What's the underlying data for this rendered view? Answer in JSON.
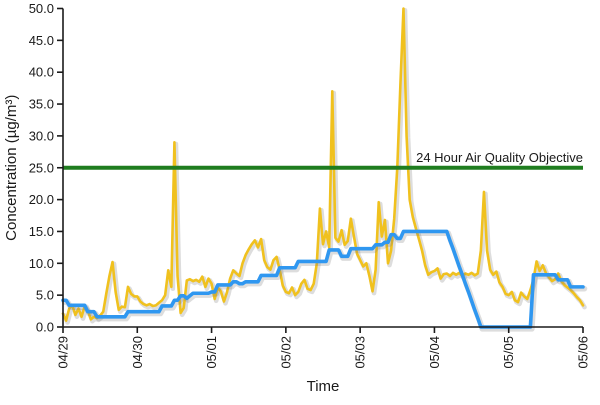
{
  "chart_data": {
    "type": "line",
    "title": "",
    "xlabel": "Time",
    "ylabel": "Concentration (µg/m³)",
    "x_unit": "hours from 04/29 00:00",
    "x_range_hours": [
      0,
      168
    ],
    "ylim": [
      0,
      50
    ],
    "ytick_step": 5,
    "ytick_labels": [
      "0.0",
      "5.0",
      "10.0",
      "15.0",
      "20.0",
      "25.0",
      "30.0",
      "35.0",
      "40.0",
      "45.0",
      "50.0"
    ],
    "x_tick_hours": [
      0,
      24,
      48,
      72,
      96,
      120,
      144,
      168
    ],
    "x_tick_labels": [
      "04/29",
      "04/30",
      "05/01",
      "05/02",
      "05/03",
      "05/04",
      "05/05",
      "05/06"
    ],
    "grid": "off",
    "legend": "none",
    "axis_color": "#1a1a1a",
    "reference_line": {
      "value": 25,
      "label": "24 Hour Air Quality Objective",
      "color": "#1f7d1f"
    },
    "series": [
      {
        "name": "hourly-concentration-yellow",
        "color": "#f0c11e",
        "width": 2.6,
        "values": [
          2.1,
          1.0,
          2.9,
          3.4,
          1.9,
          2.9,
          1.6,
          3.3,
          2.6,
          1.2,
          1.6,
          1.4,
          1.8,
          2.4,
          5.3,
          8.0,
          10.2,
          5.5,
          2.7,
          3.2,
          3.1,
          6.3,
          5.2,
          4.8,
          4.8,
          4.0,
          3.6,
          3.4,
          3.6,
          3.3,
          3.4,
          3.8,
          4.2,
          5.0,
          8.9,
          6.3,
          29.0,
          8.0,
          2.2,
          3.0,
          7.3,
          7.5,
          7.2,
          7.4,
          7.1,
          7.9,
          6.3,
          7.6,
          6.8,
          4.4,
          6.2,
          5.6,
          4.0,
          5.5,
          7.6,
          8.9,
          8.4,
          8.0,
          10.0,
          11.3,
          12.2,
          13.0,
          13.6,
          12.5,
          13.8,
          10.5,
          9.4,
          9.0,
          10.5,
          11.0,
          9.0,
          6.5,
          5.5,
          5.3,
          6.2,
          5.0,
          5.5,
          6.8,
          7.4,
          6.0,
          5.8,
          6.8,
          10.0,
          18.6,
          13.0,
          15.0,
          12.5,
          37.0,
          14.0,
          13.4,
          15.2,
          12.9,
          13.5,
          17.0,
          14.2,
          11.5,
          10.5,
          9.5,
          10.0,
          8.0,
          5.6,
          9.0,
          19.6,
          14.2,
          16.8,
          10.0,
          12.0,
          17.0,
          25.0,
          38.0,
          50.0,
          30.0,
          20.0,
          17.3,
          15.5,
          13.8,
          12.0,
          9.7,
          8.2,
          8.6,
          8.8,
          9.2,
          7.6,
          8.3,
          8.4,
          8.0,
          8.5,
          8.2,
          8.5,
          8.0,
          8.4,
          8.2,
          8.5,
          8.1,
          8.4,
          12.0,
          21.2,
          12.0,
          9.0,
          8.2,
          8.7,
          7.0,
          6.3,
          5.2,
          5.0,
          5.5,
          4.2,
          3.9,
          5.4,
          4.8,
          4.4,
          5.8,
          7.5,
          10.3,
          8.8,
          9.7,
          8.5,
          7.8,
          7.2,
          7.5,
          8.4,
          7.2,
          6.6,
          6.2,
          5.8,
          5.3,
          4.7,
          4.2,
          3.4
        ]
      },
      {
        "name": "24-hour-average-concentration-blue",
        "color": "#2f97f0",
        "width": 3.6,
        "values": [
          4.2,
          4.2,
          3.4,
          3.4,
          3.4,
          3.4,
          3.4,
          3.4,
          2.4,
          2.4,
          2.4,
          1.6,
          1.6,
          1.6,
          1.6,
          1.6,
          1.6,
          1.6,
          1.6,
          1.6,
          1.6,
          2.4,
          2.4,
          2.4,
          2.4,
          2.4,
          2.4,
          2.4,
          2.4,
          2.4,
          2.4,
          2.4,
          3.3,
          3.3,
          3.3,
          3.3,
          4.2,
          4.2,
          4.9,
          4.9,
          4.5,
          4.9,
          5.3,
          5.3,
          5.3,
          5.3,
          5.3,
          5.3,
          5.5,
          5.5,
          6.6,
          6.6,
          6.6,
          6.6,
          6.6,
          7.1,
          7.1,
          6.8,
          6.8,
          7.1,
          7.1,
          7.1,
          7.1,
          7.1,
          8.1,
          8.1,
          8.1,
          8.1,
          8.1,
          8.1,
          9.3,
          9.3,
          9.3,
          9.3,
          9.3,
          9.3,
          10.3,
          10.3,
          10.3,
          10.3,
          10.3,
          10.3,
          10.3,
          10.3,
          10.3,
          10.3,
          12.1,
          12.1,
          12.1,
          12.1,
          11.1,
          11.1,
          11.1,
          12.3,
          12.3,
          12.3,
          12.3,
          12.3,
          12.3,
          12.3,
          12.3,
          12.9,
          12.9,
          12.9,
          13.3,
          13.3,
          14.5,
          14.5,
          13.9,
          13.9,
          15.0,
          15.0,
          15.0,
          15.0,
          15.0,
          15.0,
          15.0,
          15.0,
          15.0,
          15.0,
          15.0,
          15.0,
          15.0,
          15.0,
          15.0,
          13.6,
          12.3,
          10.9,
          9.5,
          8.2,
          6.8,
          5.5,
          4.1,
          2.7,
          1.4,
          0.0,
          0.0,
          0.0,
          0.0,
          0.0,
          0.0,
          0.0,
          0.0,
          0.0,
          0.0,
          0.0,
          0.0,
          0.0,
          0.0,
          0.0,
          0.0,
          0.0,
          8.2,
          8.2,
          8.2,
          8.2,
          8.2,
          8.2,
          8.2,
          8.2,
          7.4,
          7.4,
          7.4,
          7.4,
          6.3,
          6.3,
          6.3,
          6.3,
          6.3
        ]
      }
    ]
  }
}
